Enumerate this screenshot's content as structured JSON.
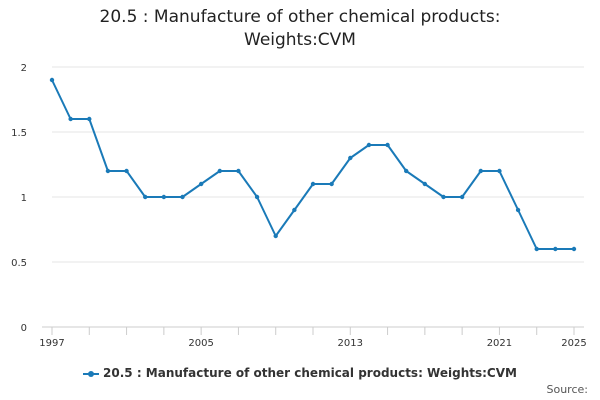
{
  "chart_data": {
    "type": "line",
    "title_lines": [
      "20.5 : Manufacture of other chemical products:",
      "Weights:CVM"
    ],
    "xlabel": "",
    "ylabel": "",
    "x": [
      1997,
      1998,
      1999,
      2000,
      2001,
      2002,
      2003,
      2004,
      2005,
      2006,
      2007,
      2008,
      2009,
      2010,
      2011,
      2012,
      2013,
      2014,
      2015,
      2016,
      2017,
      2018,
      2019,
      2020,
      2021,
      2022,
      2023,
      2024,
      2025
    ],
    "series": [
      {
        "name": "20.5 : Manufacture of other chemical products: Weights:CVM",
        "color": "#1a7ab8",
        "values": [
          1.9,
          1.6,
          1.6,
          1.2,
          1.2,
          1.0,
          1.0,
          1.0,
          1.1,
          1.2,
          1.2,
          1.0,
          0.7,
          0.9,
          1.1,
          1.1,
          1.3,
          1.4,
          1.4,
          1.2,
          1.1,
          1.0,
          1.0,
          1.2,
          1.2,
          0.9,
          0.6,
          0.6,
          0.6
        ]
      }
    ],
    "ylim": [
      0,
      2
    ],
    "xlim": [
      1997,
      2025
    ],
    "yticks": [
      0,
      0.5,
      1,
      1.5,
      2
    ],
    "ytick_labels": [
      "0",
      "0.5",
      "1",
      "1.5",
      "2"
    ],
    "xticks": [
      1997,
      2005,
      2013,
      2021,
      2025
    ],
    "xtick_labels": [
      "1997",
      "2005",
      "2013",
      "2021",
      "2025"
    ],
    "grid": true,
    "legend_position": "bottom-center"
  },
  "footer": {
    "source_label": "Source:"
  },
  "colors": {
    "gridline": "#e6e6e6",
    "axis": "#cccccc"
  }
}
